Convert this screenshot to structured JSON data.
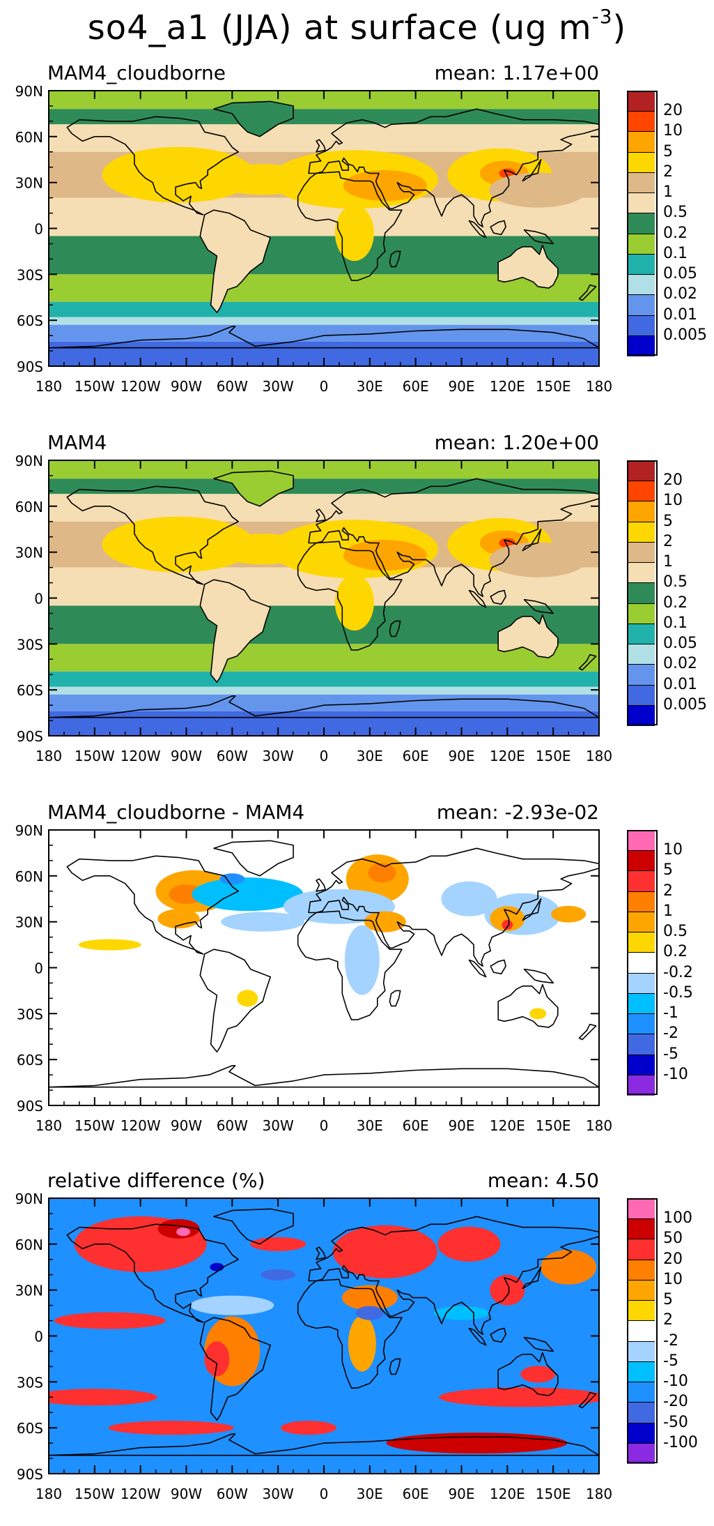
{
  "figure": {
    "title": "so4_a1 (JJA) at surface (ug m",
    "title_units_exp": "-3",
    "title_close": ")"
  },
  "axes": {
    "lat_labels": [
      "90N",
      "60N",
      "30N",
      "0",
      "30S",
      "60S",
      "90S"
    ],
    "lon_labels": [
      "180",
      "150W",
      "120W",
      "90W",
      "60W",
      "30W",
      "0",
      "30E",
      "60E",
      "90E",
      "120E",
      "150E",
      "180"
    ]
  },
  "panels": [
    {
      "title": "MAM4_cloudborne",
      "mean": "mean:  1.17e+00",
      "kind": "concentration",
      "colorbar": {
        "colors": [
          "#b22222",
          "#ff4500",
          "#ffa500",
          "#ffd700",
          "#deb887",
          "#f5deb3",
          "#2e8b57",
          "#9acd32",
          "#20b2aa",
          "#b0e0e6",
          "#6495ed",
          "#4169e1",
          "#0000cd"
        ],
        "labels": [
          "20",
          "10",
          "5",
          "2",
          "1",
          "0.5",
          "0.2",
          "0.1",
          "0.05",
          "0.02",
          "0.01",
          "0.005"
        ]
      }
    },
    {
      "title": "MAM4",
      "mean": "mean:  1.20e+00",
      "kind": "concentration",
      "colorbar": {
        "colors": [
          "#b22222",
          "#ff4500",
          "#ffa500",
          "#ffd700",
          "#deb887",
          "#f5deb3",
          "#2e8b57",
          "#9acd32",
          "#20b2aa",
          "#b0e0e6",
          "#6495ed",
          "#4169e1",
          "#0000cd"
        ],
        "labels": [
          "20",
          "10",
          "5",
          "2",
          "1",
          "0.5",
          "0.2",
          "0.1",
          "0.05",
          "0.02",
          "0.01",
          "0.005"
        ]
      }
    },
    {
      "title": "MAM4_cloudborne - MAM4",
      "mean": "mean:  -2.93e-02",
      "kind": "difference",
      "colorbar": {
        "colors": [
          "#ff69b4",
          "#cd0000",
          "#ff3030",
          "#ff7f00",
          "#ffa500",
          "#ffd700",
          "#ffffff",
          "#a4d3ff",
          "#00bfff",
          "#1e90ff",
          "#4169e1",
          "#0000cd",
          "#8a2be2"
        ],
        "labels": [
          "10",
          "5",
          "2",
          "1",
          "0.5",
          "0.2",
          "-0.2",
          "-0.5",
          "-1",
          "-2",
          "-5",
          "-10"
        ]
      }
    },
    {
      "title": "relative difference (%)",
      "mean": "mean:   4.50",
      "kind": "relative",
      "colorbar": {
        "colors": [
          "#ff69b4",
          "#cd0000",
          "#ff3030",
          "#ff7f00",
          "#ffa500",
          "#ffd700",
          "#ffffff",
          "#a4d3ff",
          "#00bfff",
          "#1e90ff",
          "#4169e1",
          "#0000cd",
          "#8a2be2"
        ],
        "labels": [
          "100",
          "50",
          "20",
          "10",
          "5",
          "2",
          "-2",
          "-5",
          "-10",
          "-20",
          "-50",
          "-100"
        ]
      }
    }
  ]
}
